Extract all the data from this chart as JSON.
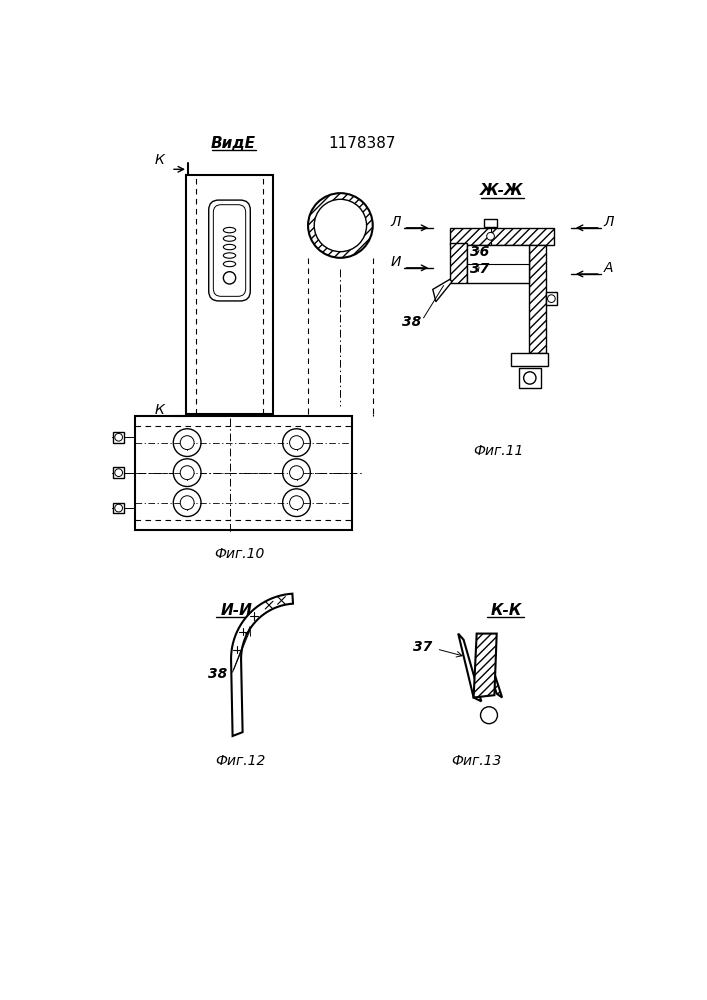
{
  "title": "1178387",
  "bg_color": "#ffffff",
  "line_color": "#000000",
  "labels": {
    "vide_e": "ВидЕ",
    "zh_zh": "Ж-Ж",
    "i_i": "И-И",
    "k_k": "К-К",
    "fig10": "Фиг.10",
    "fig11": "Фиг.11",
    "fig12": "Фиг.12",
    "fig13": "Фиг.13",
    "k": "К",
    "l": "Л",
    "i": "И",
    "a": "А",
    "n36": "36",
    "n37": "37",
    "n38": "38"
  }
}
